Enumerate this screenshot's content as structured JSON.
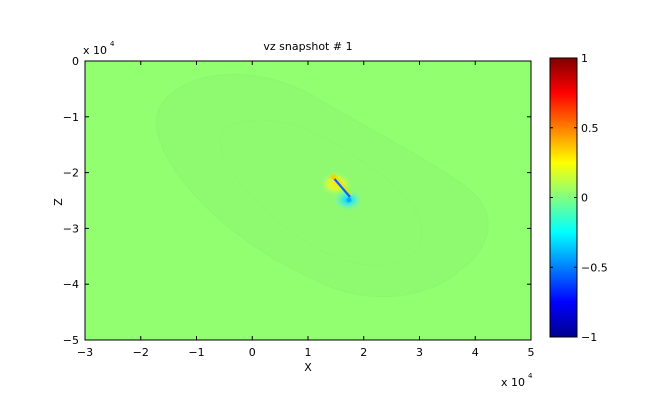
{
  "chart_data": {
    "type": "heatmap",
    "title": "vz snapshot # 1",
    "xlabel": "X",
    "ylabel": "Z",
    "x_exponent_label": "x 10",
    "x_exponent_power": "4",
    "y_exponent_label": "x 10",
    "y_exponent_power": "4",
    "xlim": [
      -30000,
      50000
    ],
    "ylim": [
      -50000,
      0
    ],
    "x_ticks": [
      -3,
      -2,
      -1,
      0,
      1,
      2,
      3,
      4,
      5
    ],
    "y_ticks": [
      0,
      -1,
      -2,
      -3,
      -4,
      -5
    ],
    "colorbar": {
      "range": [
        -1,
        1
      ],
      "ticks": [
        "1",
        "0.5",
        "0",
        "-0.5",
        "-1"
      ],
      "colormap": "jet"
    },
    "background_value": 0,
    "source_center": {
      "x": 15000,
      "z": -21000
    },
    "wavefront_halo_color": "#8ffa70",
    "field_background_color": "#91ff70"
  }
}
